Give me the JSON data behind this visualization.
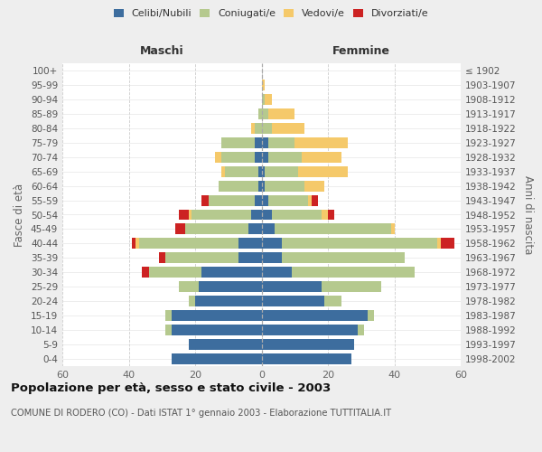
{
  "age_groups": [
    "100+",
    "95-99",
    "90-94",
    "85-89",
    "80-84",
    "75-79",
    "70-74",
    "65-69",
    "60-64",
    "55-59",
    "50-54",
    "45-49",
    "40-44",
    "35-39",
    "30-34",
    "25-29",
    "20-24",
    "15-19",
    "10-14",
    "5-9",
    "0-4"
  ],
  "birth_years": [
    "≤ 1902",
    "1903-1907",
    "1908-1912",
    "1913-1917",
    "1918-1922",
    "1923-1927",
    "1928-1932",
    "1933-1937",
    "1938-1942",
    "1943-1947",
    "1948-1952",
    "1953-1957",
    "1958-1962",
    "1963-1967",
    "1968-1972",
    "1973-1977",
    "1978-1982",
    "1983-1987",
    "1988-1992",
    "1993-1997",
    "1998-2002"
  ],
  "maschi": {
    "celibi": [
      0,
      0,
      0,
      0,
      0,
      2,
      2,
      1,
      1,
      2,
      3,
      4,
      7,
      7,
      18,
      19,
      20,
      27,
      27,
      22,
      27
    ],
    "coniugati": [
      0,
      0,
      0,
      1,
      2,
      10,
      10,
      10,
      12,
      14,
      18,
      19,
      30,
      22,
      16,
      6,
      2,
      2,
      2,
      0,
      0
    ],
    "vedovi": [
      0,
      0,
      0,
      0,
      1,
      0,
      2,
      1,
      0,
      0,
      1,
      0,
      1,
      0,
      0,
      0,
      0,
      0,
      0,
      0,
      0
    ],
    "divorziati": [
      0,
      0,
      0,
      0,
      0,
      0,
      0,
      0,
      0,
      2,
      3,
      3,
      1,
      2,
      2,
      0,
      0,
      0,
      0,
      0,
      0
    ]
  },
  "femmine": {
    "nubili": [
      0,
      0,
      0,
      0,
      0,
      2,
      2,
      1,
      1,
      2,
      3,
      4,
      6,
      6,
      9,
      18,
      19,
      32,
      29,
      28,
      27
    ],
    "coniugate": [
      0,
      0,
      1,
      2,
      3,
      8,
      10,
      10,
      12,
      12,
      15,
      35,
      47,
      37,
      37,
      18,
      5,
      2,
      2,
      0,
      0
    ],
    "vedove": [
      0,
      1,
      2,
      8,
      10,
      16,
      12,
      15,
      6,
      1,
      2,
      1,
      1,
      0,
      0,
      0,
      0,
      0,
      0,
      0,
      0
    ],
    "divorziate": [
      0,
      0,
      0,
      0,
      0,
      0,
      0,
      0,
      0,
      2,
      2,
      0,
      4,
      0,
      0,
      0,
      0,
      0,
      0,
      0,
      0
    ]
  },
  "colors": {
    "celibi": "#3d6d9e",
    "coniugati": "#b5c98e",
    "vedovi": "#f5c96a",
    "divorziati": "#cc2222"
  },
  "xlim": 60,
  "title": "Popolazione per età, sesso e stato civile - 2003",
  "subtitle": "COMUNE DI RODERO (CO) - Dati ISTAT 1° gennaio 2003 - Elaborazione TUTTITALIA.IT",
  "ylabel_left": "Fasce di età",
  "ylabel_right": "Anni di nascita",
  "xlabel_left": "Maschi",
  "xlabel_right": "Femmine",
  "bg_color": "#eeeeee",
  "plot_bg_color": "#ffffff"
}
